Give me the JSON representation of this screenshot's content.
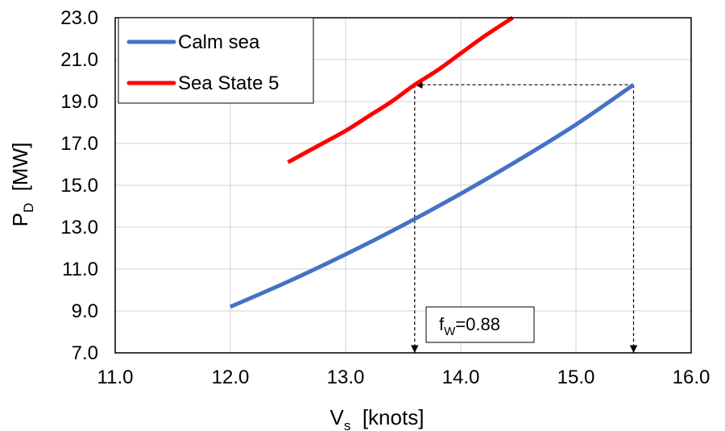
{
  "chart_data": {
    "type": "line",
    "xlabel": {
      "main": "V",
      "sub": "s",
      "unit": "  [knots]"
    },
    "ylabel": {
      "main": "P",
      "sub": "D",
      "unit": "  [MW]"
    },
    "xlim": [
      11.0,
      16.0
    ],
    "ylim": [
      7.0,
      23.0
    ],
    "x_ticks": [
      "11.0",
      "12.0",
      "13.0",
      "14.0",
      "15.0",
      "16.0"
    ],
    "y_ticks": [
      "7.0",
      "9.0",
      "11.0",
      "13.0",
      "15.0",
      "17.0",
      "19.0",
      "21.0",
      "23.0"
    ],
    "x_tick_values": [
      11,
      12,
      13,
      14,
      15,
      16
    ],
    "y_tick_values": [
      7,
      9,
      11,
      13,
      15,
      17,
      19,
      21,
      23
    ],
    "grid": true,
    "legend_position": "top-left",
    "series": [
      {
        "name": "Calm sea",
        "color": "#4472C4",
        "x": [
          12.0,
          12.5,
          13.0,
          13.5,
          14.0,
          14.5,
          15.0,
          15.5
        ],
        "y": [
          9.2,
          10.4,
          11.7,
          13.1,
          14.6,
          16.2,
          17.9,
          19.8
        ]
      },
      {
        "name": "Sea State 5",
        "color": "#FF0000",
        "x": [
          12.5,
          12.8,
          13.0,
          13.2,
          13.4,
          13.6,
          13.8,
          14.0,
          14.2,
          14.45
        ],
        "y": [
          16.1,
          17.0,
          17.6,
          18.3,
          19.0,
          19.8,
          20.5,
          21.3,
          22.1,
          23.0
        ]
      }
    ],
    "annotations": [
      {
        "text_main": "f",
        "text_sub": "W",
        "text_rest": "=0.88",
        "style": "dashed-arrows",
        "horizontal": {
          "y": 19.8,
          "from_x": 15.5,
          "to_x": 13.6
        },
        "verticals": [
          {
            "x": 15.5,
            "from_y": 19.8,
            "to_y": 7.0
          },
          {
            "x": 13.6,
            "from_y": 19.8,
            "to_y": 7.0
          }
        ]
      }
    ]
  }
}
